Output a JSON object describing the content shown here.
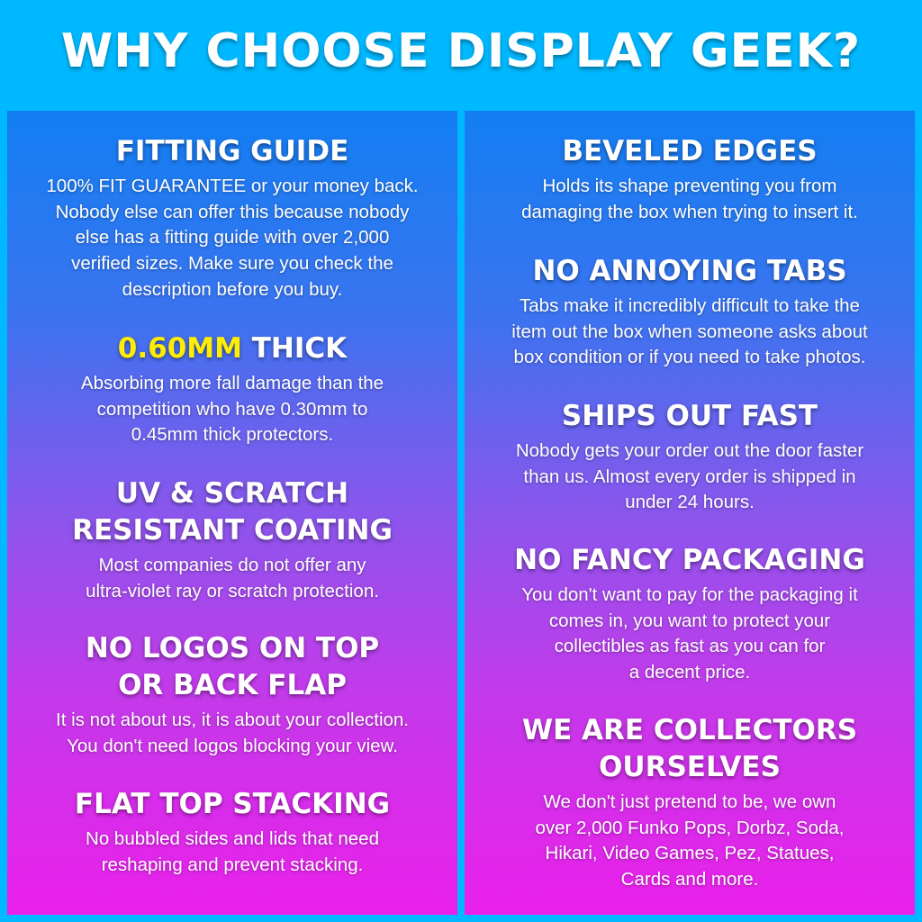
{
  "title": "WHY CHOOSE DISPLAY GEEK?",
  "colors": {
    "background": "#00b8ff",
    "gradient_top": "#127ef2",
    "gradient_bottom": "#ea20ea",
    "highlight": "#ffee00"
  },
  "left": [
    {
      "heading": "FITTING GUIDE",
      "body": "100% FIT GUARANTEE or your money back.\nNobody else can offer this because nobody\nelse has a fitting guide with over 2,000\nverified sizes. Make sure you check the\ndescription before you buy."
    },
    {
      "heading_highlight": "0.60MM",
      "heading": " THICK",
      "body": "Absorbing more fall damage than the\ncompetition who have 0.30mm to\n0.45mm thick protectors."
    },
    {
      "heading": "UV & SCRATCH\nRESISTANT COATING",
      "body": "Most companies do not offer any\nultra-violet ray or scratch protection."
    },
    {
      "heading": "NO LOGOS ON TOP\nOR BACK FLAP",
      "body": "It is not about us, it is about your collection.\nYou don't need logos blocking your view."
    },
    {
      "heading": "FLAT TOP STACKING",
      "body": "No bubbled sides and lids that need\nreshaping and prevent stacking."
    }
  ],
  "right": [
    {
      "heading": "BEVELED EDGES",
      "body": "Holds its shape preventing you from\ndamaging the box when trying to insert it."
    },
    {
      "heading": "NO ANNOYING TABS",
      "body": "Tabs make it incredibly difficult to take the\nitem out the box when someone asks about\nbox condition or if you need to take photos."
    },
    {
      "heading": "SHIPS OUT FAST",
      "body": "Nobody gets your order out the door faster\nthan us. Almost every order is shipped in\nunder 24 hours."
    },
    {
      "heading": "NO FANCY PACKAGING",
      "body": "You don't want to pay for the packaging it\ncomes in, you want to protect your\ncollectibles as fast as you can for\na decent price."
    },
    {
      "heading": "WE ARE COLLECTORS\nOURSELVES",
      "body": "We don't just pretend to be, we own\nover 2,000 Funko Pops, Dorbz, Soda,\nHikari, Video Games, Pez, Statues,\nCards and more."
    }
  ]
}
